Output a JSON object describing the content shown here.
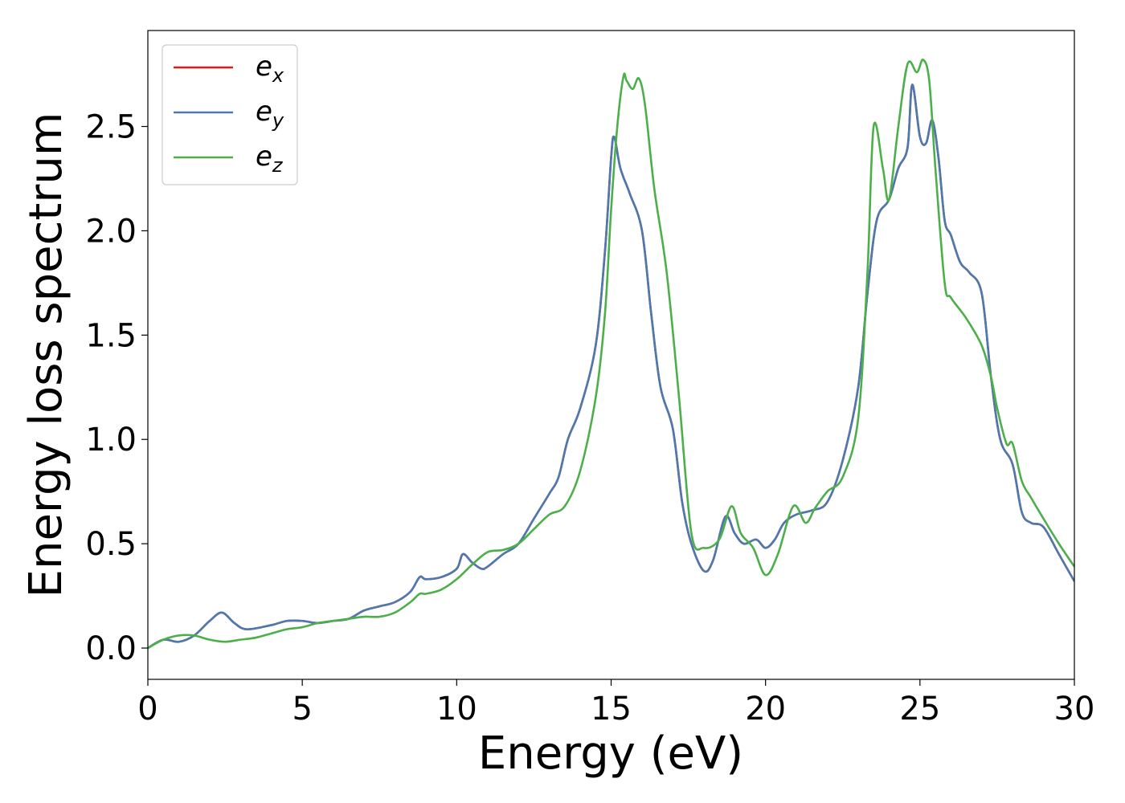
{
  "chart_data": {
    "type": "line",
    "title": "",
    "xlabel": "Energy (eV)",
    "ylabel": "Energy loss spectrum",
    "xlim": [
      0,
      30
    ],
    "ylim": [
      -0.15,
      2.96
    ],
    "xticks": [
      "0",
      "5",
      "10",
      "15",
      "20",
      "25",
      "30"
    ],
    "yticks": [
      "0.0",
      "0.5",
      "1.0",
      "1.5",
      "2.0",
      "2.5"
    ],
    "grid": false,
    "legend_position": "top-left",
    "series": [
      {
        "name": "e_x",
        "color": "#e41a1c",
        "x": [
          0,
          0.5,
          1,
          1.5,
          2,
          2.4,
          2.8,
          3.2,
          4,
          4.5,
          5,
          5.5,
          6,
          6.5,
          7,
          7.5,
          8,
          8.5,
          8.8,
          9,
          9.5,
          10,
          10.2,
          10.5,
          10.8,
          11,
          11.5,
          12,
          12.5,
          13,
          13.3,
          13.6,
          14,
          14.5,
          14.8,
          15,
          15.1,
          15.3,
          15.6,
          16,
          16.3,
          16.6,
          17,
          17.3,
          17.6,
          18,
          18.3,
          18.7,
          19,
          19.3,
          19.7,
          20,
          20.3,
          20.6,
          21,
          21.5,
          22,
          22.5,
          23,
          23.3,
          23.6,
          24,
          24.3,
          24.6,
          24.75,
          25,
          25.2,
          25.4,
          25.6,
          25.8,
          26,
          26.3,
          26.6,
          27,
          27.3,
          27.6,
          28,
          28.3,
          28.6,
          29,
          29.5,
          30
        ],
        "y": [
          0.0,
          0.04,
          0.03,
          0.06,
          0.13,
          0.17,
          0.12,
          0.09,
          0.11,
          0.13,
          0.13,
          0.12,
          0.13,
          0.14,
          0.18,
          0.2,
          0.22,
          0.27,
          0.34,
          0.33,
          0.34,
          0.38,
          0.45,
          0.41,
          0.38,
          0.39,
          0.45,
          0.5,
          0.62,
          0.74,
          0.82,
          1.0,
          1.15,
          1.45,
          1.9,
          2.35,
          2.45,
          2.3,
          2.18,
          2.0,
          1.6,
          1.25,
          1.05,
          0.7,
          0.5,
          0.37,
          0.42,
          0.63,
          0.55,
          0.5,
          0.52,
          0.48,
          0.52,
          0.6,
          0.64,
          0.66,
          0.7,
          0.9,
          1.25,
          1.7,
          2.05,
          2.15,
          2.3,
          2.4,
          2.7,
          2.45,
          2.42,
          2.53,
          2.35,
          2.05,
          1.98,
          1.85,
          1.8,
          1.7,
          1.3,
          1.0,
          0.88,
          0.65,
          0.6,
          0.58,
          0.45,
          0.32
        ]
      },
      {
        "name": "e_y",
        "color": "#4a7ab0",
        "x": [
          0,
          0.5,
          1,
          1.5,
          2,
          2.4,
          2.8,
          3.2,
          4,
          4.5,
          5,
          5.5,
          6,
          6.5,
          7,
          7.5,
          8,
          8.5,
          8.8,
          9,
          9.5,
          10,
          10.2,
          10.5,
          10.8,
          11,
          11.5,
          12,
          12.5,
          13,
          13.3,
          13.6,
          14,
          14.5,
          14.8,
          15,
          15.1,
          15.3,
          15.6,
          16,
          16.3,
          16.6,
          17,
          17.3,
          17.6,
          18,
          18.3,
          18.7,
          19,
          19.3,
          19.7,
          20,
          20.3,
          20.6,
          21,
          21.5,
          22,
          22.5,
          23,
          23.3,
          23.6,
          24,
          24.3,
          24.6,
          24.75,
          25,
          25.2,
          25.4,
          25.6,
          25.8,
          26,
          26.3,
          26.6,
          27,
          27.3,
          27.6,
          28,
          28.3,
          28.6,
          29,
          29.5,
          30
        ],
        "y": [
          0.0,
          0.04,
          0.03,
          0.06,
          0.13,
          0.17,
          0.12,
          0.09,
          0.11,
          0.13,
          0.13,
          0.12,
          0.13,
          0.14,
          0.18,
          0.2,
          0.22,
          0.27,
          0.34,
          0.33,
          0.34,
          0.38,
          0.45,
          0.41,
          0.38,
          0.39,
          0.45,
          0.5,
          0.62,
          0.74,
          0.82,
          1.0,
          1.15,
          1.45,
          1.9,
          2.35,
          2.45,
          2.3,
          2.18,
          2.0,
          1.6,
          1.25,
          1.05,
          0.7,
          0.5,
          0.37,
          0.42,
          0.63,
          0.55,
          0.5,
          0.52,
          0.48,
          0.52,
          0.6,
          0.64,
          0.66,
          0.7,
          0.9,
          1.25,
          1.7,
          2.05,
          2.15,
          2.3,
          2.4,
          2.7,
          2.45,
          2.42,
          2.53,
          2.35,
          2.05,
          1.98,
          1.85,
          1.8,
          1.7,
          1.3,
          1.0,
          0.88,
          0.65,
          0.6,
          0.58,
          0.45,
          0.32
        ]
      },
      {
        "name": "e_z",
        "color": "#4daf4a",
        "x": [
          0,
          0.5,
          1,
          1.5,
          2,
          2.5,
          3,
          3.5,
          4,
          4.5,
          5,
          5.5,
          6,
          6.5,
          7,
          7.5,
          8,
          8.5,
          8.8,
          9,
          9.5,
          10,
          10.5,
          11,
          11.5,
          12,
          12.5,
          13,
          13.5,
          14,
          14.5,
          14.8,
          15,
          15.2,
          15.4,
          15.5,
          15.7,
          15.9,
          16.1,
          16.4,
          16.8,
          17.2,
          17.6,
          18,
          18.5,
          18.9,
          19.2,
          19.6,
          20,
          20.4,
          20.9,
          21.3,
          21.6,
          22,
          22.5,
          23,
          23.3,
          23.5,
          23.8,
          24,
          24.3,
          24.6,
          24.9,
          25.1,
          25.3,
          25.5,
          25.8,
          26,
          26.5,
          27,
          27.3,
          27.5,
          27.8,
          28,
          28.3,
          28.6,
          29,
          29.5,
          30
        ],
        "y": [
          0.0,
          0.04,
          0.06,
          0.06,
          0.04,
          0.03,
          0.04,
          0.05,
          0.07,
          0.09,
          0.1,
          0.12,
          0.13,
          0.14,
          0.15,
          0.15,
          0.17,
          0.22,
          0.26,
          0.26,
          0.28,
          0.33,
          0.4,
          0.46,
          0.47,
          0.5,
          0.57,
          0.64,
          0.68,
          0.85,
          1.2,
          1.6,
          2.1,
          2.5,
          2.74,
          2.72,
          2.68,
          2.73,
          2.6,
          2.2,
          1.8,
          1.2,
          0.55,
          0.48,
          0.52,
          0.68,
          0.55,
          0.48,
          0.35,
          0.45,
          0.68,
          0.6,
          0.67,
          0.75,
          0.82,
          1.1,
          1.8,
          2.5,
          2.3,
          2.15,
          2.5,
          2.8,
          2.76,
          2.82,
          2.72,
          2.3,
          1.75,
          1.68,
          1.58,
          1.45,
          1.3,
          1.15,
          0.98,
          0.98,
          0.8,
          0.72,
          0.62,
          0.5,
          0.39
        ]
      }
    ]
  }
}
